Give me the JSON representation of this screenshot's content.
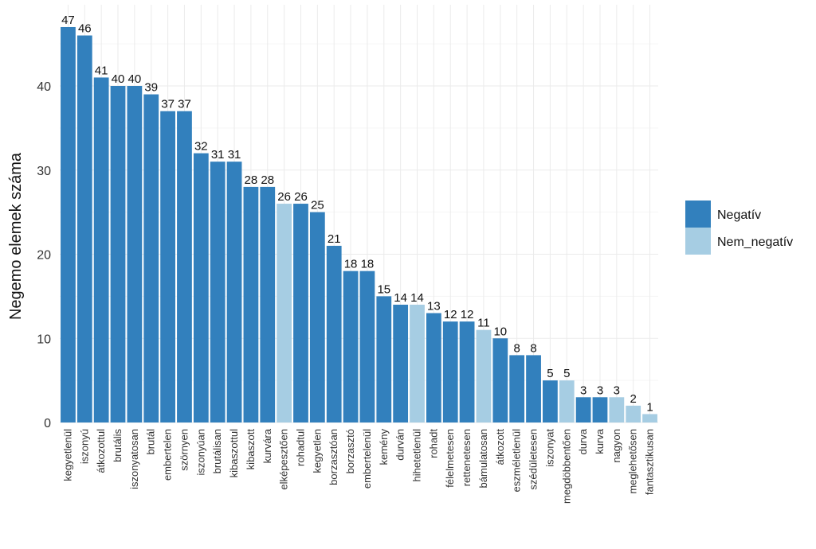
{
  "chart_data": {
    "type": "bar",
    "ylabel": "Negemo elemek száma",
    "xlabel": "",
    "ylim": [
      0,
      48
    ],
    "yticks": [
      0,
      10,
      20,
      30,
      40
    ],
    "grid": true,
    "legend_position": "right",
    "series_colors": {
      "Negatív": "#3280bd",
      "Nem_negatív": "#a6cde3"
    },
    "legend": [
      {
        "name": "Negatív",
        "color": "#3280bd"
      },
      {
        "name": "Nem_negatív",
        "color": "#a6cde3"
      }
    ],
    "categories": [
      "kegyetlenül",
      "iszonyú",
      "átkozottul",
      "brutális",
      "iszonyatosan",
      "brutál",
      "embertelen",
      "szörnyen",
      "iszonyúan",
      "brutálisan",
      "kibaszottul",
      "kibaszott",
      "kurvára",
      "elképesztően",
      "rohadtul",
      "kegyetlen",
      "borzasztóan",
      "borzasztó",
      "embertelenül",
      "kemény",
      "durván",
      "hihetetlenül",
      "rohadt",
      "félelmetesen",
      "rettenetesen",
      "bámulatosan",
      "átkozott",
      "eszméletlenül",
      "szédületesen",
      "iszonyat",
      "megdöbbentően",
      "durva",
      "kurva",
      "nagyon",
      "meglehetősen",
      "fantasztikusan"
    ],
    "values": [
      47,
      46,
      41,
      40,
      40,
      39,
      37,
      37,
      32,
      31,
      31,
      28,
      28,
      26,
      26,
      25,
      21,
      18,
      18,
      15,
      14,
      14,
      13,
      12,
      12,
      11,
      10,
      8,
      8,
      5,
      5,
      3,
      3,
      3,
      2,
      1
    ],
    "groups": [
      "Negatív",
      "Negatív",
      "Negatív",
      "Negatív",
      "Negatív",
      "Negatív",
      "Negatív",
      "Negatív",
      "Negatív",
      "Negatív",
      "Negatív",
      "Negatív",
      "Negatív",
      "Nem_negatív",
      "Negatív",
      "Negatív",
      "Negatív",
      "Negatív",
      "Negatív",
      "Negatív",
      "Negatív",
      "Nem_negatív",
      "Negatív",
      "Negatív",
      "Negatív",
      "Nem_negatív",
      "Negatív",
      "Negatív",
      "Negatív",
      "Negatív",
      "Nem_negatív",
      "Negatív",
      "Negatív",
      "Nem_negatív",
      "Nem_negatív",
      "Nem_negatív"
    ]
  }
}
